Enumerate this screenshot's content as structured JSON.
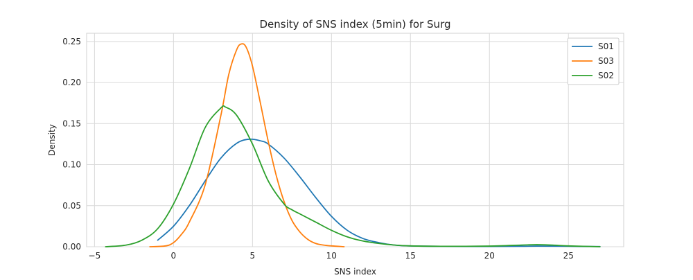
{
  "chart_data": {
    "type": "line",
    "title": "Density of SNS index (5min) for Surg",
    "xlabel": "SNS index",
    "ylabel": "Density",
    "xlim": [
      -5.5,
      28.5
    ],
    "ylim": [
      0,
      0.26
    ],
    "xticks": [
      -5,
      0,
      5,
      10,
      15,
      20,
      25
    ],
    "yticks": [
      0.0,
      0.05,
      0.1,
      0.15,
      0.2,
      0.25
    ],
    "ytick_labels": [
      "0.00",
      "0.05",
      "0.10",
      "0.15",
      "0.20",
      "0.25"
    ],
    "grid": true,
    "legend_position": "top-right",
    "series": [
      {
        "name": "S01",
        "color": "#1f77b4",
        "x": [
          -1,
          0,
          1,
          2,
          3,
          4,
          4.8,
          5.5,
          6,
          7,
          8,
          9,
          10,
          11,
          12,
          13,
          14,
          15,
          17,
          20,
          22,
          23,
          25,
          27
        ],
        "y": [
          0.008,
          0.025,
          0.05,
          0.08,
          0.108,
          0.126,
          0.131,
          0.129,
          0.125,
          0.108,
          0.085,
          0.06,
          0.037,
          0.02,
          0.01,
          0.005,
          0.002,
          0.001,
          0.0005,
          0.0003,
          0.0005,
          0.0008,
          0.0005,
          0.0002
        ]
      },
      {
        "name": "S03",
        "color": "#ff7f0e",
        "x": [
          -1.5,
          -0.5,
          0,
          0.5,
          1,
          2,
          3,
          3.5,
          4,
          4.3,
          4.6,
          5,
          5.5,
          6,
          6.5,
          7,
          7.5,
          8,
          8.5,
          9,
          9.5,
          10,
          10.8
        ],
        "y": [
          0.0,
          0.001,
          0.005,
          0.015,
          0.03,
          0.075,
          0.16,
          0.21,
          0.24,
          0.247,
          0.243,
          0.22,
          0.175,
          0.128,
          0.087,
          0.055,
          0.032,
          0.018,
          0.009,
          0.004,
          0.002,
          0.001,
          0.0
        ]
      },
      {
        "name": "S02",
        "color": "#2ca02c",
        "x": [
          -4.3,
          -3,
          -2,
          -1,
          0,
          1,
          2,
          3,
          3.3,
          4,
          5,
          6,
          7,
          7.5,
          8,
          9,
          10,
          11,
          12,
          13,
          14,
          15,
          17,
          20,
          22,
          23,
          24,
          25,
          27
        ],
        "y": [
          0.0,
          0.002,
          0.008,
          0.022,
          0.052,
          0.095,
          0.145,
          0.169,
          0.17,
          0.16,
          0.125,
          0.08,
          0.052,
          0.045,
          0.04,
          0.03,
          0.02,
          0.012,
          0.007,
          0.004,
          0.002,
          0.001,
          0.0005,
          0.0008,
          0.002,
          0.0025,
          0.002,
          0.001,
          0.0
        ]
      }
    ]
  }
}
